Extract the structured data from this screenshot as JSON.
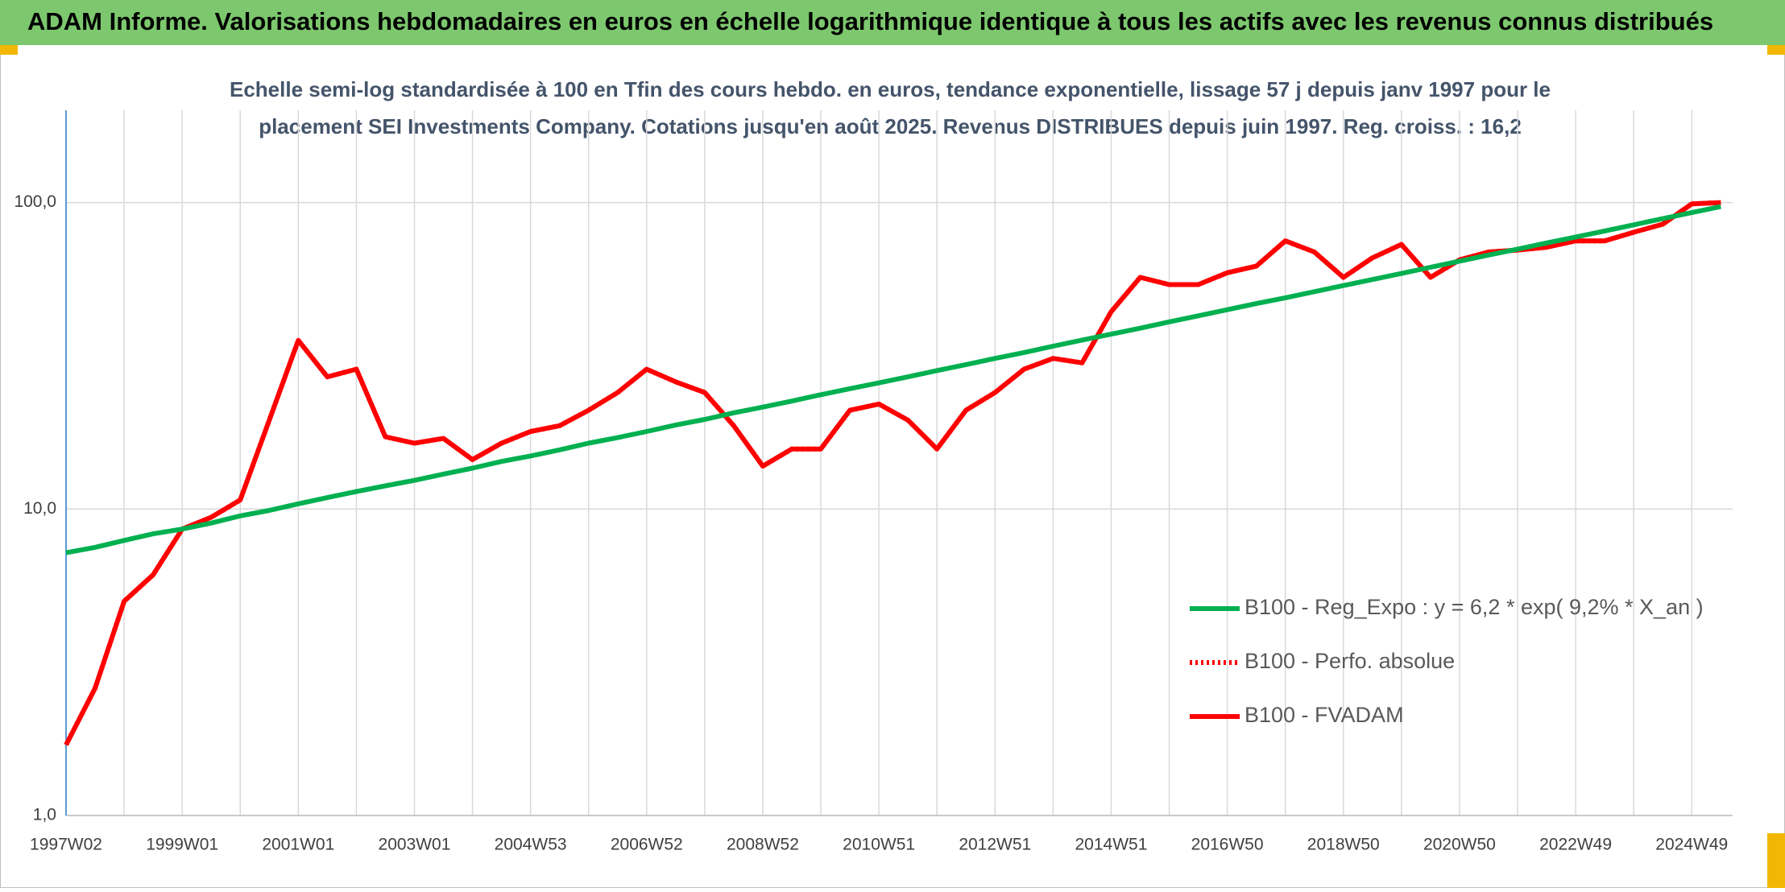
{
  "header": {
    "title": "ADAM Informe. Valorisations hebdomadaires en euros en échelle logarithmique identique à tous les actifs avec les revenus connus distribués"
  },
  "chart_data": {
    "type": "line",
    "title": [
      "Echelle semi-log standardisée à 100 en Tfin des cours hebdo. en euros, tendance exponentielle, lissage 57 j depuis janv 1997 pour le",
      "placement SEI Investments Company. Cotations jusqu'en août 2025. Revenus DISTRIBUES depuis juin 1997. Reg. croiss. : 16,2"
    ],
    "categories": [
      "1997W02",
      null,
      null,
      null,
      "1999W01",
      null,
      null,
      null,
      "2001W01",
      null,
      null,
      null,
      "2003W01",
      null,
      null,
      null,
      "2004W53",
      null,
      null,
      null,
      "2006W52",
      null,
      null,
      null,
      "2008W52",
      null,
      null,
      null,
      "2010W51",
      null,
      null,
      null,
      "2012W51",
      null,
      null,
      null,
      "2014W51",
      null,
      null,
      null,
      "2016W50",
      null,
      null,
      null,
      "2018W50",
      null,
      null,
      null,
      "2020W50",
      null,
      null,
      null,
      "2022W49",
      null,
      null,
      null,
      "2024W49",
      null
    ],
    "series": [
      {
        "name": "B100 - Reg_Expo : y = 6,2 * exp( 9,2% *  X_an )",
        "color": "#00b050",
        "style": "solid",
        "values": [
          7.2,
          7.5,
          7.9,
          8.3,
          8.6,
          9.0,
          9.5,
          9.9,
          10.4,
          10.9,
          11.4,
          11.9,
          12.4,
          13.0,
          13.6,
          14.3,
          14.9,
          15.6,
          16.4,
          17.1,
          17.9,
          18.8,
          19.6,
          20.6,
          21.5,
          22.5,
          23.6,
          24.7,
          25.8,
          27.0,
          28.3,
          29.6,
          31.0,
          32.4,
          34.0,
          35.6,
          37.2,
          38.9,
          40.8,
          42.7,
          44.7,
          46.8,
          48.9,
          51.2,
          53.6,
          56.1,
          58.7,
          61.5,
          64.4,
          67.4,
          70.5,
          73.8,
          77.2,
          80.8,
          84.6,
          88.6,
          92.7,
          97.0
        ]
      },
      {
        "name": "B100 - Perfo. absolue",
        "color": "#ff0000",
        "style": "dotted",
        "values": [
          1.7,
          2.6,
          5.0,
          6.1,
          8.6,
          9.4,
          10.7,
          19.5,
          35.5,
          27,
          28.6,
          17.2,
          16.4,
          17,
          14.5,
          16.4,
          17.9,
          18.7,
          21,
          24,
          28.6,
          26,
          24,
          18.7,
          13.8,
          15.7,
          15.7,
          21,
          22,
          19.5,
          15.7,
          21,
          24,
          28.6,
          31,
          30,
          44,
          57,
          54,
          54,
          59,
          62,
          75,
          69,
          57,
          66,
          73,
          57,
          65,
          69,
          70,
          71.5,
          75,
          75,
          80,
          85,
          99,
          100
        ]
      },
      {
        "name": "B100 - FVADAM",
        "color": "#ff0000",
        "style": "solid",
        "values": [
          1.7,
          2.6,
          5.0,
          6.1,
          8.6,
          9.4,
          10.7,
          19.5,
          35.5,
          27,
          28.6,
          17.2,
          16.4,
          17,
          14.5,
          16.4,
          17.9,
          18.7,
          21,
          24,
          28.6,
          26,
          24,
          18.7,
          13.8,
          15.7,
          15.7,
          21,
          22,
          19.5,
          15.7,
          21,
          24,
          28.6,
          31,
          30,
          44,
          57,
          54,
          54,
          59,
          62,
          75,
          69,
          57,
          66,
          73,
          57,
          65,
          69,
          70,
          71.5,
          75,
          75,
          80,
          85,
          99,
          100
        ]
      }
    ],
    "log_y": true,
    "ylim": [
      1,
      200
    ],
    "yticks": [
      {
        "value": 1,
        "label": "1,0"
      },
      {
        "value": 10,
        "label": "10,0"
      },
      {
        "value": 100,
        "label": "100,0"
      }
    ],
    "grid": true,
    "legend": "lower right"
  }
}
